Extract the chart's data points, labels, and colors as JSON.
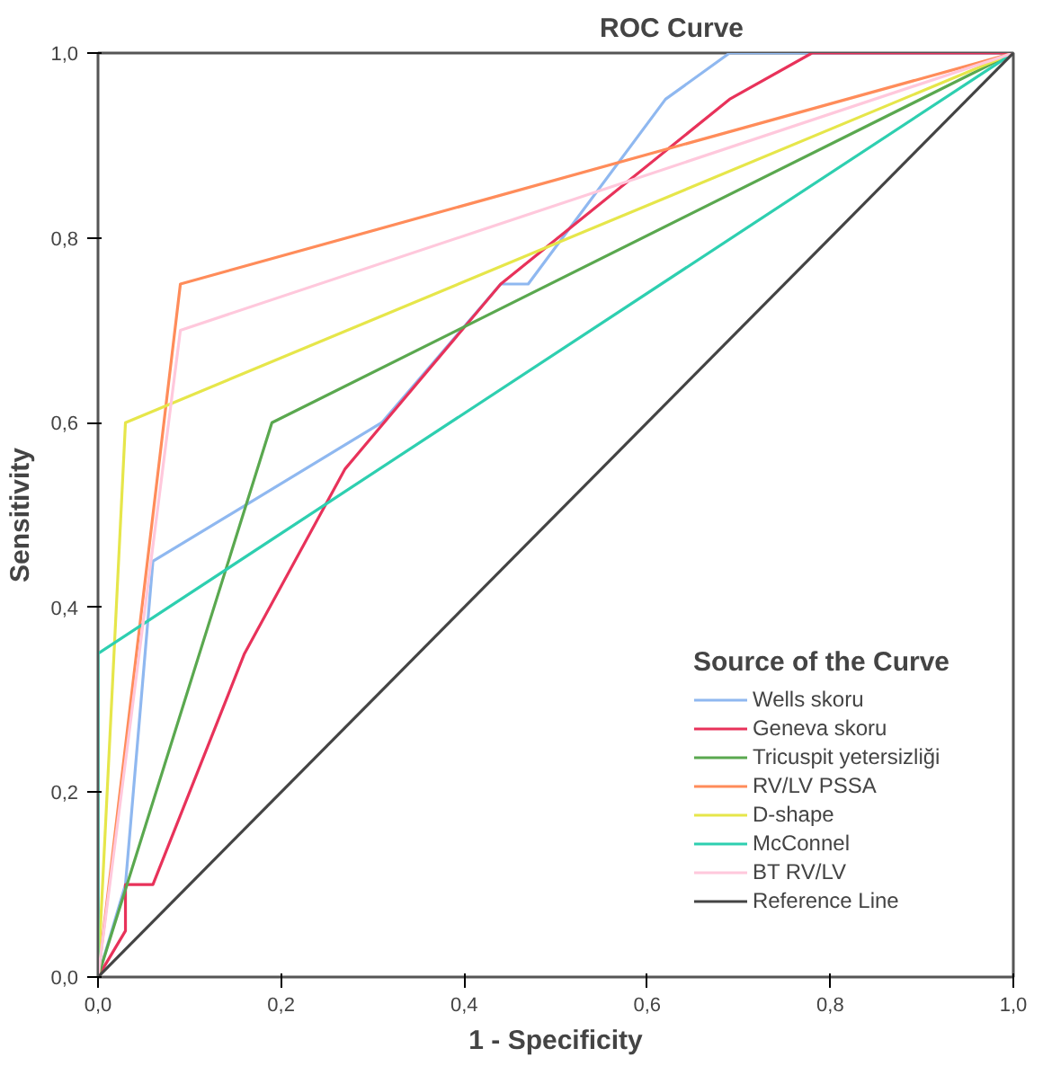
{
  "chart_data": {
    "type": "line",
    "title": "ROC Curve",
    "xlabel": "1 - Specificity",
    "ylabel": "Sensitivity",
    "legend_title": "Source of the Curve",
    "xlim": [
      0,
      1
    ],
    "ylim": [
      0,
      1
    ],
    "xticks": [
      {
        "value": 0,
        "label": "0,0"
      },
      {
        "value": 0.2,
        "label": "0,2"
      },
      {
        "value": 0.4,
        "label": "0,4"
      },
      {
        "value": 0.6,
        "label": "0,6"
      },
      {
        "value": 0.8,
        "label": "0,8"
      },
      {
        "value": 1,
        "label": "1,0"
      }
    ],
    "yticks": [
      {
        "value": 0,
        "label": "0,0"
      },
      {
        "value": 0.2,
        "label": "0,2"
      },
      {
        "value": 0.4,
        "label": "0,4"
      },
      {
        "value": 0.6,
        "label": "0,6"
      },
      {
        "value": 0.8,
        "label": "0,8"
      },
      {
        "value": 1,
        "label": "1,0"
      }
    ],
    "grid": false,
    "legend": "bottom right",
    "marker": "none",
    "line_style": "solid",
    "series": [
      {
        "name": "Wells skoru",
        "color": "#8fb8f0",
        "x": [
          0,
          0.03,
          0.06,
          0.31,
          0.44,
          0.47,
          0.62,
          0.69,
          1
        ],
        "values": [
          0,
          0.1,
          0.45,
          0.6,
          0.75,
          0.75,
          0.95,
          1,
          1
        ]
      },
      {
        "name": "Geneva skoru",
        "color": "#e8325a",
        "x": [
          0,
          0.03,
          0.03,
          0.06,
          0.16,
          0.27,
          0.44,
          0.69,
          0.78,
          1
        ],
        "values": [
          0,
          0.05,
          0.1,
          0.1,
          0.35,
          0.55,
          0.75,
          0.95,
          1,
          1
        ]
      },
      {
        "name": "Tricuspit yetersizliği",
        "color": "#5aa84f",
        "x": [
          0,
          0.19,
          1
        ],
        "values": [
          0,
          0.6,
          1
        ]
      },
      {
        "name": "RV/LV PSSA",
        "color": "#ff8c5a",
        "x": [
          0,
          0.09,
          1
        ],
        "values": [
          0,
          0.75,
          1
        ]
      },
      {
        "name": "D-shape",
        "color": "#e6e64a",
        "x": [
          0,
          0.03,
          1
        ],
        "values": [
          0,
          0.6,
          1
        ]
      },
      {
        "name": "McConnel",
        "color": "#2ecfb0",
        "x": [
          0,
          0,
          1
        ],
        "values": [
          0,
          0.35,
          1
        ]
      },
      {
        "name": "BT RV/LV",
        "color": "#ffc8dc",
        "x": [
          0,
          0.09,
          1
        ],
        "values": [
          0,
          0.7,
          1
        ]
      },
      {
        "name": "Reference Line",
        "color": "#444444",
        "x": [
          0,
          1
        ],
        "values": [
          0,
          1
        ]
      }
    ]
  }
}
